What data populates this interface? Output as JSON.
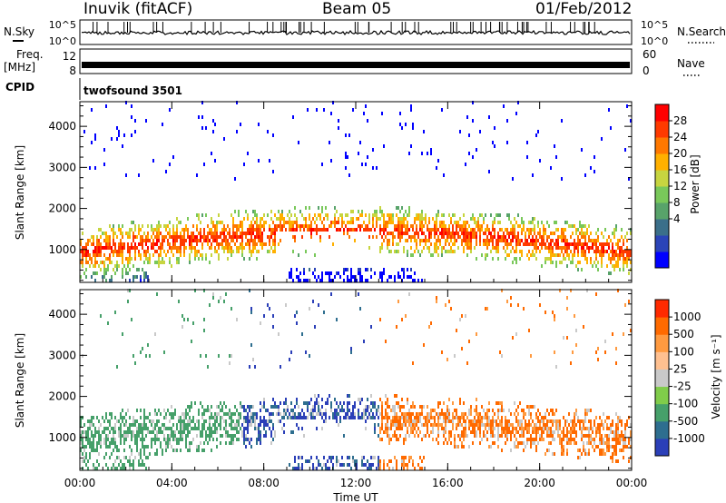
{
  "header": {
    "station": "Inuvik (fitACF)",
    "beam": "Beam 05",
    "date": "01/Feb/2012"
  },
  "param_panels": {
    "nsky_label": "N.Sky",
    "nsky_ticks": [
      "10^5",
      "10^0"
    ],
    "nsearch_label": "N.Search",
    "freq_label": "Freq.",
    "freq_unit": "[MHz]",
    "freq_ticks": [
      "12",
      "8"
    ],
    "nave_label": "Nave",
    "nave_ticks": [
      "60",
      "0"
    ],
    "cpid_label": "CPID",
    "cpid_value": "twofsound 3501"
  },
  "chart_data": [
    {
      "type": "heatmap",
      "name": "power-panel",
      "ylabel": "Slant Range [km]",
      "yticks": [
        1000,
        2000,
        3000,
        4000
      ],
      "ylim": [
        200,
        4600
      ],
      "x": [
        "00:00",
        "04:00",
        "08:00",
        "12:00",
        "16:00",
        "20:00",
        "00:00"
      ],
      "colorbar": {
        "label": "Power [dB]",
        "ticks": [
          "28",
          "24",
          "20",
          "16",
          "12",
          "8",
          "4"
        ],
        "colors": [
          "#0000ff",
          "#2b44b8",
          "#3b6f8a",
          "#58a36a",
          "#79c85a",
          "#c7d540",
          "#ffb000",
          "#ff7800",
          "#ff3a00",
          "#ff0000"
        ]
      }
    },
    {
      "type": "heatmap",
      "name": "velocity-panel",
      "ylabel": "Slant Range [km]",
      "yticks": [
        1000,
        2000,
        3000,
        4000
      ],
      "ylim": [
        200,
        4600
      ],
      "x": [
        "00:00",
        "04:00",
        "08:00",
        "12:00",
        "16:00",
        "20:00",
        "00:00"
      ],
      "xlabel": "Time UT",
      "colorbar": {
        "label": "Velocity [m s⁻¹]",
        "ticks": [
          "1000",
          "500",
          "100",
          "25",
          "-25",
          "-100",
          "-500",
          "-1000"
        ],
        "colors": [
          "#2b3fb8",
          "#2e6e8f",
          "#46a06a",
          "#80cc4a",
          "#c9c9c9",
          "#ffc090",
          "#ff9a40",
          "#ff6a00",
          "#ff2a00"
        ]
      }
    }
  ]
}
